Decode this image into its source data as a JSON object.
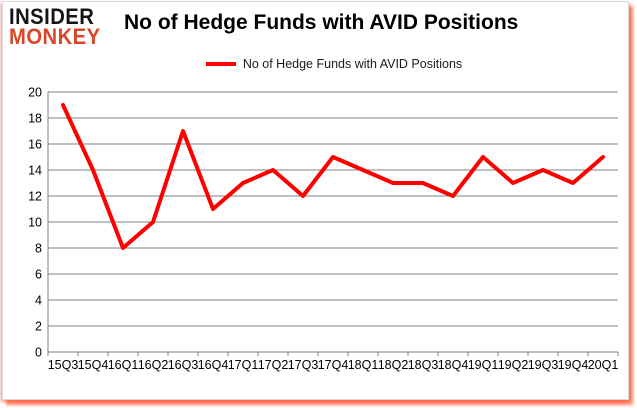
{
  "logo": {
    "line1": "INSIDER",
    "line2": "MONKEY",
    "color_black": "#151515",
    "color_red": "#d9472b"
  },
  "header": {
    "title": "No of Hedge Funds with AVID Positions"
  },
  "legend": {
    "label": "No of Hedge Funds with AVID Positions",
    "swatch_color": "#ff0000"
  },
  "colors": {
    "series_line": "#ff0000",
    "gridline": "#808080",
    "axis": "#808080",
    "label_text": "#000000",
    "background": "#ffffff"
  },
  "chart_data": {
    "type": "line",
    "title": "No of Hedge Funds with AVID Positions",
    "legend_entries": [
      "No of Hedge Funds with AVID Positions"
    ],
    "legend_position": "top-center",
    "grid": true,
    "categories": [
      "15Q3",
      "15Q4",
      "16Q1",
      "16Q2",
      "16Q3",
      "16Q4",
      "17Q1",
      "17Q2",
      "17Q3",
      "17Q4",
      "18Q1",
      "18Q2",
      "18Q3",
      "18Q4",
      "19Q1",
      "19Q2",
      "19Q3",
      "19Q4",
      "20Q1"
    ],
    "values": [
      19,
      14,
      8,
      10,
      17,
      11,
      13,
      14,
      12,
      15,
      14,
      13,
      13,
      12,
      15,
      13,
      14,
      13,
      15
    ],
    "xlabel": "",
    "ylabel": "",
    "ylim": [
      0,
      20
    ],
    "ytick_step": 2,
    "ytick_labels": [
      "0",
      "2",
      "4",
      "6",
      "8",
      "10",
      "12",
      "14",
      "16",
      "18",
      "20"
    ]
  }
}
